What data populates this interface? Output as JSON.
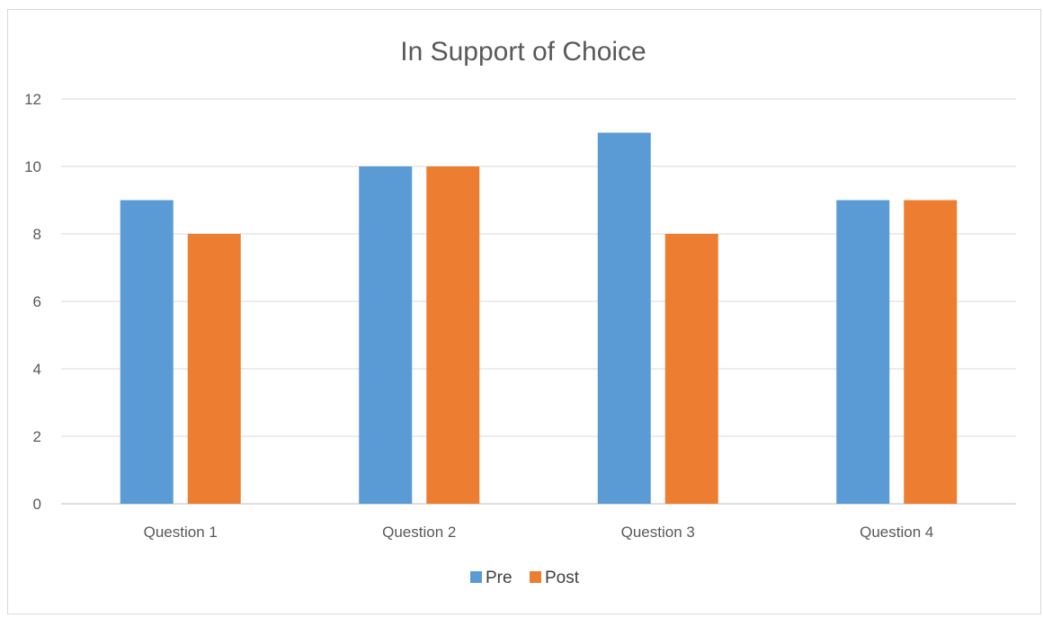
{
  "chart_data": {
    "type": "bar",
    "title": "In Support of Choice",
    "xlabel": "",
    "ylabel": "",
    "categories": [
      "Question 1",
      "Question 2",
      "Question 3",
      "Question 4"
    ],
    "series": [
      {
        "name": "Pre",
        "values": [
          9,
          10,
          11,
          9
        ],
        "color": "#5B9BD5"
      },
      {
        "name": "Post",
        "values": [
          8,
          10,
          8,
          9
        ],
        "color": "#ED7D31"
      }
    ],
    "ylim": [
      0,
      12
    ],
    "yticks": [
      "0",
      "2",
      "4",
      "6",
      "8",
      "10",
      "12"
    ],
    "grid": true,
    "legend_position": "bottom"
  }
}
